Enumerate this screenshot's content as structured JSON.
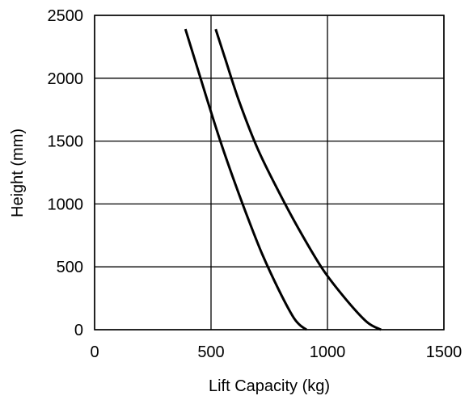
{
  "chart_data": {
    "type": "line",
    "title": "",
    "xlabel": "Lift Capacity (kg)",
    "ylabel": "Height (mm)",
    "xlim": [
      0,
      1500
    ],
    "ylim": [
      0,
      2500
    ],
    "xticks": [
      "0",
      "500",
      "1000",
      "1500"
    ],
    "yticks": [
      "0",
      "500",
      "1000",
      "1500",
      "2000",
      "2500"
    ],
    "grid": true,
    "legend": "none",
    "line_color": "#000000",
    "series": [
      {
        "x": [
          390,
          430,
          480,
          540,
          600,
          660,
          720,
          790,
          850,
          880,
          910
        ],
        "y": [
          2390,
          2150,
          1850,
          1500,
          1180,
          880,
          600,
          320,
          110,
          40,
          0
        ]
      },
      {
        "x": [
          520,
          560,
          620,
          700,
          790,
          880,
          980,
          1080,
          1170,
          1230
        ],
        "y": [
          2390,
          2160,
          1820,
          1440,
          1100,
          790,
          480,
          240,
          60,
          0
        ]
      }
    ]
  }
}
